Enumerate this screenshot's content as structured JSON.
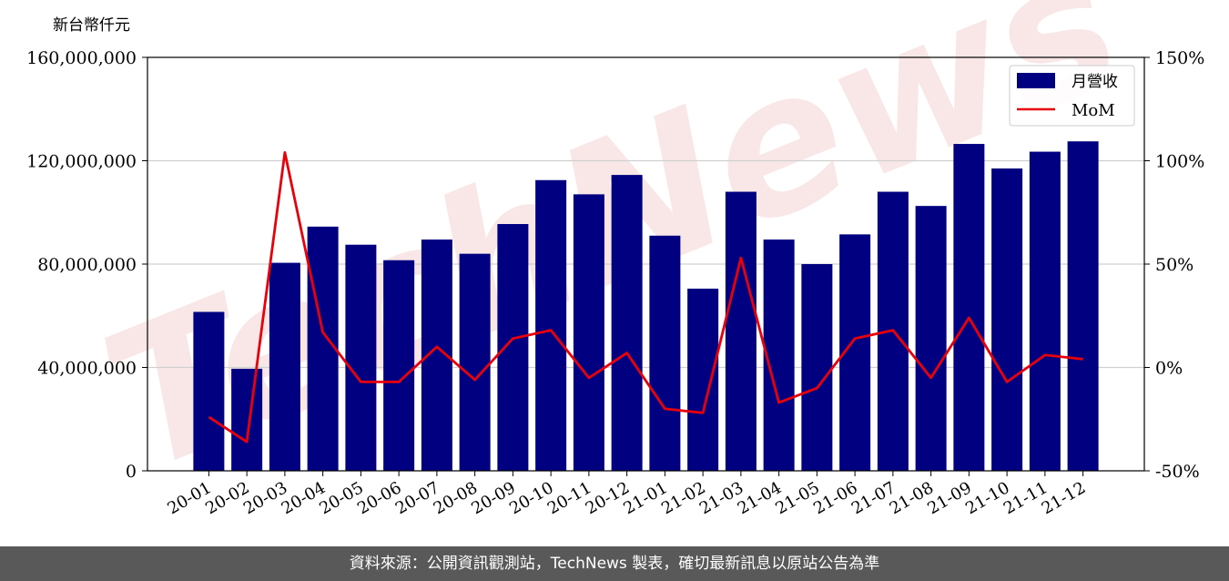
{
  "chart_data": {
    "type": "bar",
    "unit_label": "新台幣仟元",
    "categories": [
      "20-01",
      "20-02",
      "20-03",
      "20-04",
      "20-05",
      "20-06",
      "20-07",
      "20-08",
      "20-09",
      "20-10",
      "20-11",
      "20-12",
      "21-01",
      "21-02",
      "21-03",
      "21-04",
      "21-05",
      "21-06",
      "21-07",
      "21-08",
      "21-09",
      "21-10",
      "21-11",
      "21-12"
    ],
    "series": [
      {
        "name": "月營收",
        "axis": "left",
        "kind": "bar",
        "color": "#000080",
        "values": [
          61500000,
          39500000,
          80500000,
          94500000,
          87500000,
          81500000,
          89500000,
          84000000,
          95500000,
          112500000,
          107000000,
          114500000,
          91000000,
          70500000,
          108000000,
          89500000,
          80000000,
          91500000,
          108000000,
          102500000,
          126500000,
          117000000,
          123500000,
          127500000
        ]
      },
      {
        "name": "MoM",
        "axis": "right",
        "kind": "line",
        "color": "#e8000b",
        "values": [
          -24,
          -36,
          104,
          17,
          -7,
          -7,
          10,
          -6,
          14,
          18,
          -5,
          7,
          -20,
          -22,
          53,
          -17,
          -10,
          14,
          18,
          -5,
          24,
          -7,
          6,
          4
        ]
      }
    ],
    "y_left": {
      "min": 0,
      "max": 160000000,
      "ticks": [
        0,
        40000000,
        80000000,
        120000000,
        160000000
      ],
      "tick_labels": [
        "0",
        "40,000,000",
        "80,000,000",
        "120,000,000",
        "160,000,000"
      ]
    },
    "y_right": {
      "min": -50,
      "max": 150,
      "ticks": [
        -50,
        0,
        50,
        100,
        150
      ],
      "tick_labels": [
        "-50%",
        "0%",
        "50%",
        "100%",
        "150%"
      ]
    },
    "grid": true,
    "legend_position": "top-right"
  },
  "watermark": "TechNews",
  "footer_text": "資料來源：公開資訊觀測站，TechNews 製表，確切最新訊息以原站公告為準"
}
